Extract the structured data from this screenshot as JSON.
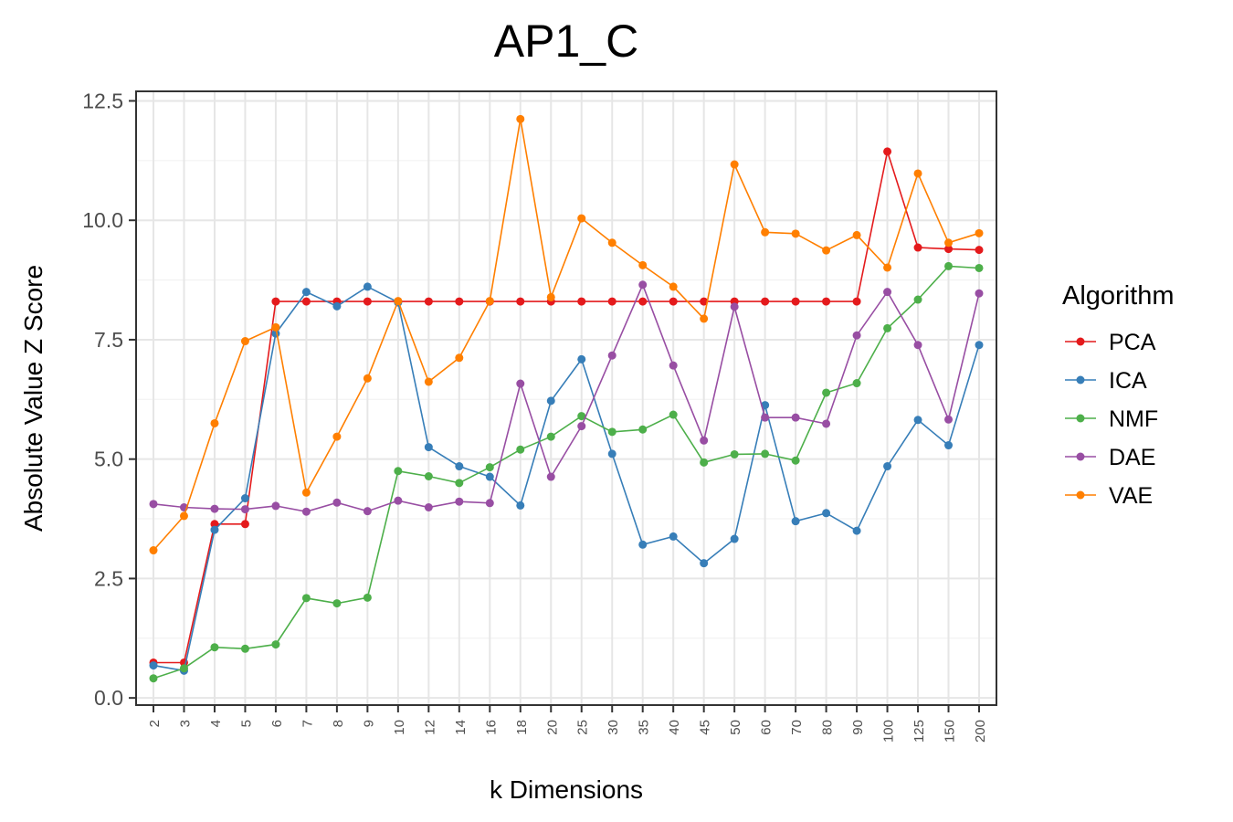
{
  "chart_data": {
    "type": "line",
    "title": "AP1_C",
    "xlabel": "k Dimensions",
    "ylabel": "Absolute Value Z Score",
    "categories": [
      "2",
      "3",
      "4",
      "5",
      "6",
      "7",
      "8",
      "9",
      "10",
      "12",
      "14",
      "16",
      "18",
      "20",
      "25",
      "30",
      "35",
      "40",
      "45",
      "50",
      "60",
      "70",
      "80",
      "90",
      "100",
      "125",
      "150",
      "200"
    ],
    "ylim": [
      -0.15,
      12.7
    ],
    "yticks": [
      0.0,
      2.5,
      5.0,
      7.5,
      10.0,
      12.5
    ],
    "ytick_labels": [
      "0.0",
      "2.5",
      "5.0",
      "7.5",
      "10.0",
      "12.5"
    ],
    "grid": true,
    "legend": {
      "title": "Algorithm",
      "position": "right"
    },
    "series": [
      {
        "name": "PCA",
        "color": "#e41a1c",
        "values": [
          0.74,
          0.74,
          3.64,
          3.64,
          8.3,
          8.3,
          8.3,
          8.3,
          8.3,
          8.3,
          8.3,
          8.3,
          8.3,
          8.3,
          8.3,
          8.3,
          8.3,
          8.3,
          8.3,
          8.3,
          8.3,
          8.3,
          8.3,
          8.3,
          11.44,
          9.43,
          9.4,
          9.38
        ]
      },
      {
        "name": "ICA",
        "color": "#377eb8",
        "values": [
          0.68,
          0.57,
          3.52,
          4.18,
          7.63,
          8.5,
          8.2,
          8.61,
          8.28,
          5.25,
          4.85,
          4.63,
          4.03,
          6.22,
          7.09,
          5.11,
          3.21,
          3.38,
          2.82,
          3.33,
          6.13,
          3.7,
          3.87,
          3.5,
          4.85,
          5.82,
          5.29,
          7.39
        ]
      },
      {
        "name": "NMF",
        "color": "#4daf4a",
        "values": [
          0.41,
          0.62,
          1.06,
          1.03,
          1.12,
          2.09,
          1.98,
          2.1,
          4.75,
          4.64,
          4.5,
          4.83,
          5.2,
          5.47,
          5.9,
          5.57,
          5.62,
          5.93,
          4.93,
          5.1,
          5.11,
          4.97,
          6.39,
          6.59,
          7.74,
          8.34,
          9.04,
          9.0
        ]
      },
      {
        "name": "DAE",
        "color": "#984ea3",
        "values": [
          4.06,
          3.99,
          3.96,
          3.95,
          4.02,
          3.9,
          4.09,
          3.91,
          4.13,
          3.99,
          4.11,
          4.08,
          6.58,
          4.63,
          5.69,
          7.17,
          8.65,
          6.96,
          5.39,
          8.19,
          5.87,
          5.87,
          5.74,
          7.59,
          8.5,
          7.39,
          5.83,
          8.47
        ]
      },
      {
        "name": "VAE",
        "color": "#ff7f00",
        "values": [
          3.09,
          3.81,
          5.75,
          7.47,
          7.76,
          4.3,
          5.47,
          6.69,
          8.31,
          6.62,
          7.12,
          8.31,
          12.12,
          8.39,
          10.04,
          9.53,
          9.06,
          8.61,
          7.94,
          11.17,
          9.75,
          9.72,
          9.37,
          9.69,
          9.01,
          10.98,
          9.53,
          9.73
        ]
      }
    ]
  }
}
